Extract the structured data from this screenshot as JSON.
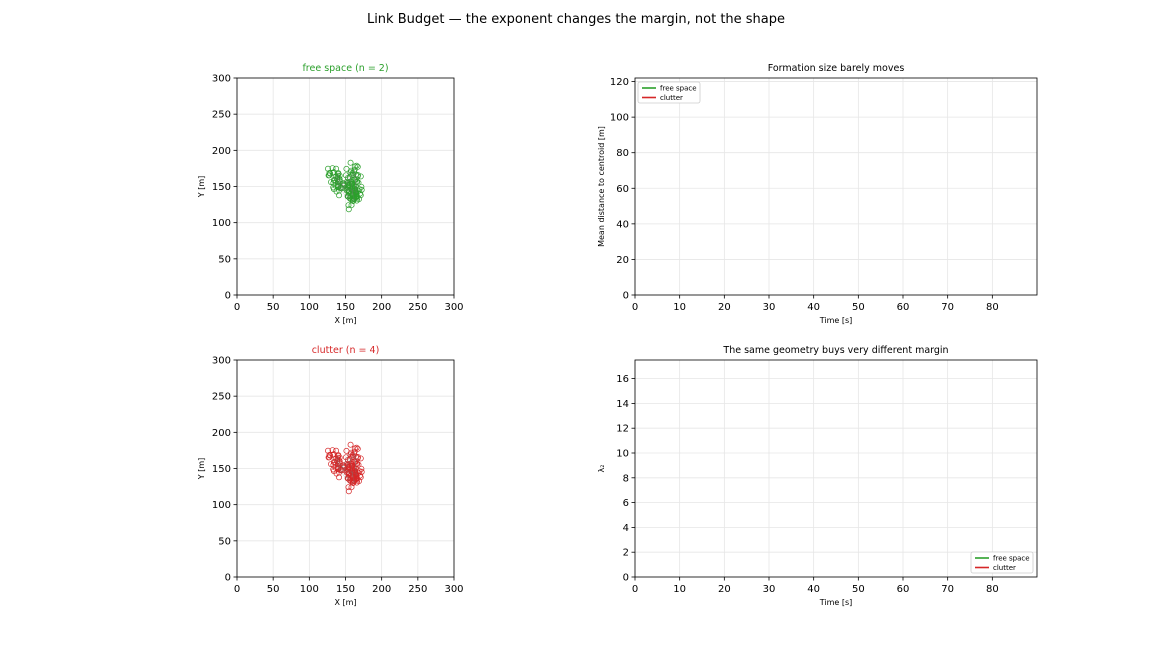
{
  "figure": {
    "suptitle": "Link Budget — the exponent changes the margin, not the shape"
  },
  "colors": {
    "free_space": "#2ca02c",
    "clutter": "#d62728",
    "edge": "#777777",
    "grid": "#e6e6e6"
  },
  "chart_data": [
    {
      "id": "free-space-map",
      "type": "scatter",
      "title": "free space (n = 2)",
      "title_color": "#2ca02c",
      "xlabel": "X [m]",
      "ylabel": "Y [m]",
      "xlim": [
        0,
        300
      ],
      "ylim": [
        0,
        300
      ],
      "xticks": [
        0,
        50,
        100,
        150,
        200,
        250,
        300
      ],
      "yticks": [
        0,
        50,
        100,
        150,
        200,
        250,
        300
      ],
      "grid": true,
      "marker": "hollow-circle",
      "color": "#2ca02c",
      "clusters": [
        {
          "center": [
            135,
            165
          ],
          "spread": 6
        },
        {
          "center": [
            143,
            150
          ],
          "spread": 6
        },
        {
          "center": [
            160,
            165
          ],
          "spread": 6
        },
        {
          "center": [
            158,
            148
          ],
          "spread": 6
        },
        {
          "center": [
            160,
            135
          ],
          "spread": 6
        },
        {
          "center": [
            163,
            142
          ],
          "spread": 5
        }
      ],
      "points_per_cluster": 24
    },
    {
      "id": "formation-size",
      "type": "line",
      "title": "Formation size barely moves",
      "xlabel": "Time [s]",
      "ylabel": "Mean distance to centroid [m]",
      "xlim": [
        0,
        90
      ],
      "ylim": [
        0,
        122
      ],
      "xticks": [
        0,
        10,
        20,
        30,
        40,
        50,
        60,
        70,
        80
      ],
      "yticks": [
        0,
        20,
        40,
        60,
        80,
        100,
        120
      ],
      "grid": true,
      "legend": "upper-left",
      "series": [
        {
          "name": "free space",
          "color": "#2ca02c",
          "x": [],
          "y": []
        },
        {
          "name": "clutter",
          "color": "#d62728",
          "x": [],
          "y": []
        }
      ]
    },
    {
      "id": "clutter-map",
      "type": "scatter",
      "title": "clutter (n = 4)",
      "title_color": "#d62728",
      "xlabel": "X [m]",
      "ylabel": "Y [m]",
      "xlim": [
        0,
        300
      ],
      "ylim": [
        0,
        300
      ],
      "xticks": [
        0,
        50,
        100,
        150,
        200,
        250,
        300
      ],
      "yticks": [
        0,
        50,
        100,
        150,
        200,
        250,
        300
      ],
      "grid": true,
      "marker": "hollow-circle",
      "color": "#d62728",
      "clusters": [
        {
          "center": [
            135,
            165
          ],
          "spread": 6
        },
        {
          "center": [
            143,
            150
          ],
          "spread": 6
        },
        {
          "center": [
            160,
            165
          ],
          "spread": 6
        },
        {
          "center": [
            158,
            148
          ],
          "spread": 6
        },
        {
          "center": [
            160,
            135
          ],
          "spread": 6
        },
        {
          "center": [
            163,
            142
          ],
          "spread": 5
        }
      ],
      "points_per_cluster": 24
    },
    {
      "id": "lambda2",
      "type": "line",
      "title": "The same geometry buys very different margin",
      "xlabel": "Time [s]",
      "ylabel": "λ₂",
      "xlim": [
        0,
        90
      ],
      "ylim": [
        0,
        17.5
      ],
      "xticks": [
        0,
        10,
        20,
        30,
        40,
        50,
        60,
        70,
        80
      ],
      "yticks": [
        0,
        2,
        4,
        6,
        8,
        10,
        12,
        14,
        16
      ],
      "grid": true,
      "legend": "lower-right",
      "series": [
        {
          "name": "free space",
          "color": "#2ca02c",
          "x": [],
          "y": []
        },
        {
          "name": "clutter",
          "color": "#d62728",
          "x": [],
          "y": []
        }
      ]
    }
  ]
}
